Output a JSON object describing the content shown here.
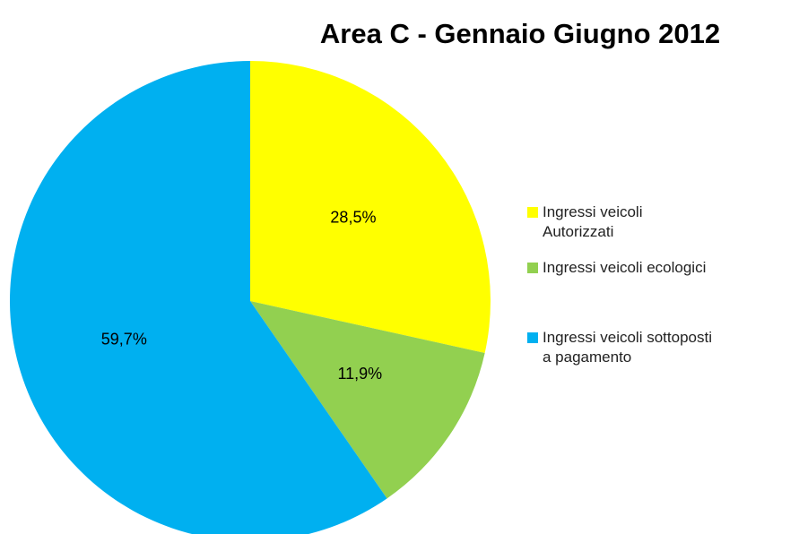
{
  "chart_data": {
    "type": "pie",
    "title": "Area C - Gennaio Giugno 2012",
    "categories": [
      "Ingressi veicoli Autorizzati",
      "Ingressi veicoli ecologici",
      "Ingressi veicoli sottoposti a pagamento"
    ],
    "values": [
      28.5,
      11.9,
      59.7
    ],
    "value_labels": [
      "28,5%",
      "11,9%",
      "59,7%"
    ],
    "colors": [
      "#ffff00",
      "#92d050",
      "#00b0f0"
    ],
    "legend": "right"
  }
}
